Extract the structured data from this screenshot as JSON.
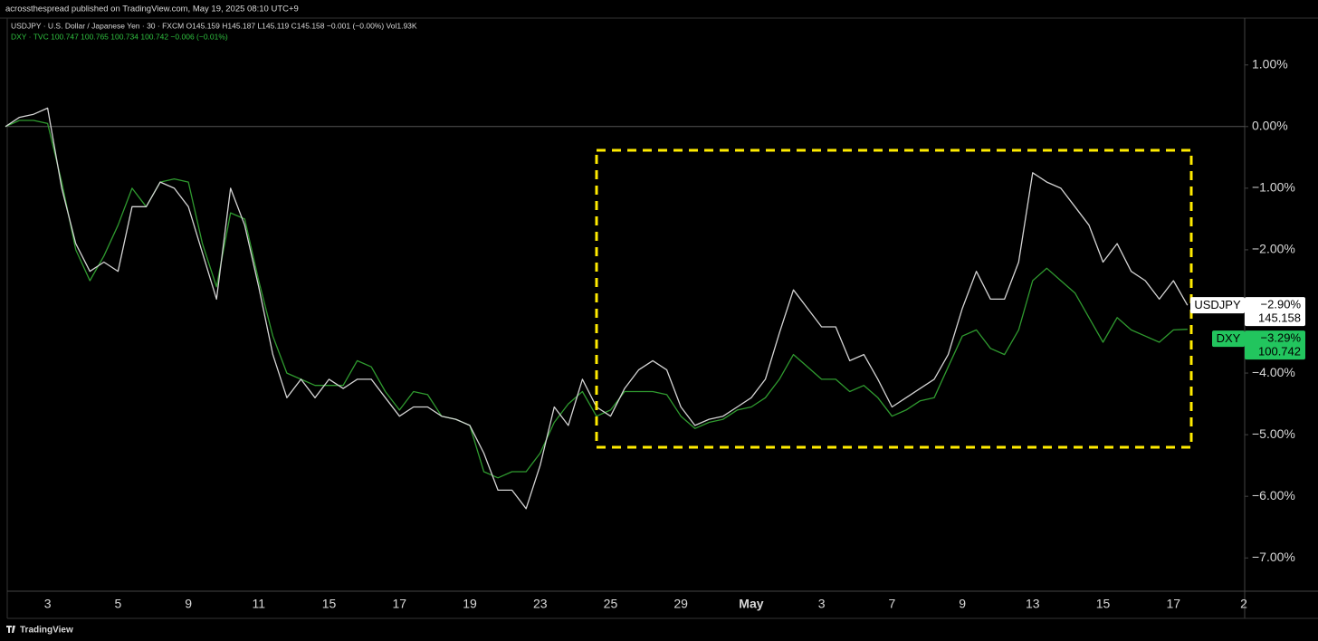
{
  "chart_data": {
    "type": "line",
    "title": "acrossthespread published on TradingView.com, May 19, 2025 08:10 UTC+9",
    "legend_lines": [
      "USDJPY · U.S. Dollar / Japanese Yen · 30 · FXCM  O145.159  H145.187  L145.119  C145.158  −0.001 (−0.00%)  Vol1.93K",
      "DXY · TVC  100.747  100.765  100.734  100.742  −0.006 (−0.01%)"
    ],
    "footer": "TradingView",
    "categories": [
      null,
      null,
      null,
      "3",
      null,
      null,
      null,
      null,
      "5",
      null,
      null,
      null,
      null,
      "9",
      null,
      null,
      null,
      null,
      "11",
      null,
      null,
      null,
      null,
      "15",
      null,
      null,
      null,
      null,
      "17",
      null,
      null,
      null,
      null,
      "19",
      null,
      null,
      null,
      null,
      "23",
      null,
      null,
      null,
      null,
      "25",
      null,
      null,
      null,
      null,
      "29",
      null,
      null,
      null,
      null,
      "May",
      null,
      null,
      null,
      null,
      "3",
      null,
      null,
      null,
      null,
      "7",
      null,
      null,
      null,
      null,
      "9",
      null,
      null,
      null,
      null,
      "13",
      null,
      null,
      null,
      null,
      "15",
      null,
      null,
      null,
      null,
      "17",
      null,
      null,
      null,
      null,
      "2"
    ],
    "series": [
      {
        "name": "USDJPY",
        "color": "#d4d4d4",
        "tag_color": "#ffffff",
        "last_value_label": "−2.90%",
        "last_price": "145.158",
        "values": [
          0,
          0.15,
          0.2,
          0.3,
          -1.0,
          -1.9,
          -2.35,
          -2.2,
          -2.35,
          -1.3,
          -1.3,
          -0.9,
          -1.0,
          -1.3,
          -2.05,
          -2.8,
          -1.0,
          -1.6,
          -2.6,
          -3.7,
          -4.4,
          -4.1,
          -4.4,
          -4.1,
          -4.25,
          -4.1,
          -4.1,
          -4.4,
          -4.7,
          -4.55,
          -4.55,
          -4.7,
          -4.75,
          -4.85,
          -5.3,
          -5.9,
          -5.9,
          -6.2,
          -5.5,
          -4.55,
          -4.85,
          -4.1,
          -4.55,
          -4.7,
          -4.25,
          -3.95,
          -3.8,
          -3.95,
          -4.55,
          -4.85,
          -4.75,
          -4.7,
          -4.55,
          -4.4,
          -4.1,
          -3.35,
          -2.65,
          -2.95,
          -3.25,
          -3.25,
          -3.8,
          -3.7,
          -4.1,
          -4.55,
          -4.4,
          -4.25,
          -4.1,
          -3.7,
          -2.95,
          -2.35,
          -2.8,
          -2.8,
          -2.2,
          -0.75,
          -0.9,
          -1.0,
          -1.3,
          -1.6,
          -2.2,
          -1.9,
          -2.35,
          -2.5,
          -2.8,
          -2.5,
          -2.9,
          null,
          null,
          null,
          null
        ]
      },
      {
        "name": "DXY",
        "color": "#2f9a2f",
        "tag_color": "#22c55e",
        "last_value_label": "−3.29%",
        "last_price": "100.742",
        "values": [
          0,
          0.1,
          0.1,
          0.05,
          -0.9,
          -2.0,
          -2.5,
          -2.1,
          -1.6,
          -1.0,
          -1.3,
          -0.9,
          -0.85,
          -0.9,
          -1.9,
          -2.6,
          -1.4,
          -1.5,
          -2.5,
          -3.4,
          -4.0,
          -4.1,
          -4.2,
          -4.2,
          -4.2,
          -3.8,
          -3.9,
          -4.3,
          -4.6,
          -4.3,
          -4.35,
          -4.7,
          -4.75,
          -4.85,
          -5.6,
          -5.7,
          -5.6,
          -5.6,
          -5.3,
          -4.8,
          -4.5,
          -4.3,
          -4.7,
          -4.6,
          -4.3,
          -4.3,
          -4.3,
          -4.35,
          -4.7,
          -4.9,
          -4.8,
          -4.75,
          -4.6,
          -4.55,
          -4.4,
          -4.1,
          -3.7,
          -3.9,
          -4.1,
          -4.1,
          -4.3,
          -4.2,
          -4.4,
          -4.7,
          -4.6,
          -4.45,
          -4.4,
          -3.9,
          -3.4,
          -3.3,
          -3.6,
          -3.7,
          -3.3,
          -2.5,
          -2.3,
          -2.5,
          -2.7,
          -3.1,
          -3.5,
          -3.1,
          -3.3,
          -3.4,
          -3.5,
          -3.3,
          -3.29,
          null,
          null,
          null,
          null
        ]
      }
    ],
    "ylim": [
      -7.54,
      1.76
    ],
    "yticks": [
      {
        "value": 1,
        "label": "1.00%"
      },
      {
        "value": 0,
        "label": "0.00%"
      },
      {
        "value": -1,
        "label": "−1.00%"
      },
      {
        "value": -2,
        "label": "−2.00%"
      },
      {
        "value": -3,
        "label": "−3.00%"
      },
      {
        "value": -4,
        "label": "−4.00%"
      },
      {
        "value": -5,
        "label": "−5.00%"
      },
      {
        "value": -6,
        "label": "−6.00%"
      },
      {
        "value": -7,
        "label": "−7.00%"
      }
    ],
    "zero_line": true
  }
}
